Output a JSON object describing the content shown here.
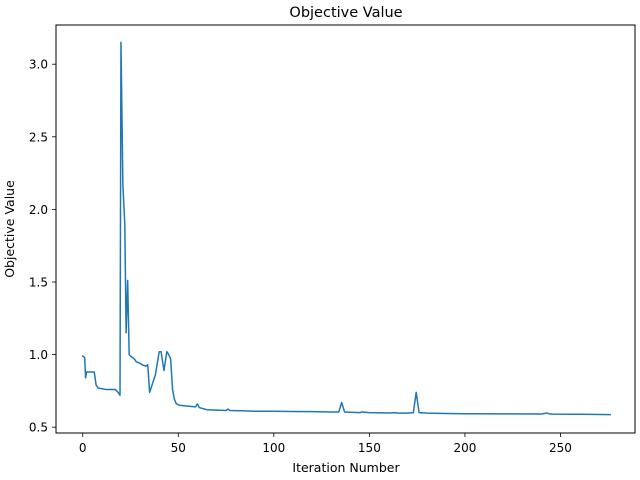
{
  "chart_data": {
    "type": "line",
    "title": "Objective Value",
    "xlabel": "Iteration Number",
    "ylabel": "Objective Value",
    "xlim": [
      -14,
      289
    ],
    "ylim": [
      0.46,
      3.27
    ],
    "xticks": [
      0,
      50,
      100,
      150,
      200,
      250
    ],
    "yticks": [
      0.5,
      1.0,
      1.5,
      2.0,
      2.5,
      3.0
    ],
    "grid": false,
    "legend": null,
    "series": [
      {
        "name": "Objective Value",
        "color": "#1f77b4",
        "x": [
          0,
          1,
          1.5,
          2,
          3,
          6,
          7,
          8,
          12,
          17,
          18.5,
          19.5,
          20,
          21,
          22,
          22.7,
          23.5,
          24.3,
          25,
          27,
          28,
          30,
          31,
          33,
          34,
          35,
          38,
          40,
          41,
          42.5,
          44,
          45,
          46,
          47,
          48,
          49,
          51,
          55,
          59,
          60,
          61,
          65,
          75,
          76,
          77,
          85,
          90,
          100,
          110,
          120,
          130,
          134,
          135.5,
          137,
          140,
          145,
          146,
          150,
          160,
          163,
          165,
          170,
          173,
          174.5,
          176,
          180,
          190,
          200,
          220,
          240,
          243,
          244,
          246,
          260,
          276
        ],
        "values": [
          0.99,
          0.98,
          0.84,
          0.88,
          0.88,
          0.88,
          0.79,
          0.77,
          0.76,
          0.76,
          0.74,
          0.72,
          3.15,
          2.17,
          1.9,
          1.15,
          1.51,
          1.0,
          0.99,
          0.97,
          0.95,
          0.94,
          0.93,
          0.92,
          0.93,
          0.74,
          0.86,
          1.02,
          1.02,
          0.89,
          1.02,
          1.0,
          0.97,
          0.76,
          0.69,
          0.66,
          0.65,
          0.645,
          0.64,
          0.66,
          0.635,
          0.62,
          0.615,
          0.625,
          0.615,
          0.612,
          0.61,
          0.61,
          0.608,
          0.607,
          0.605,
          0.605,
          0.67,
          0.605,
          0.603,
          0.6,
          0.605,
          0.6,
          0.598,
          0.6,
          0.597,
          0.597,
          0.6,
          0.74,
          0.6,
          0.597,
          0.594,
          0.593,
          0.592,
          0.591,
          0.598,
          0.592,
          0.59,
          0.589,
          0.587
        ]
      }
    ]
  }
}
